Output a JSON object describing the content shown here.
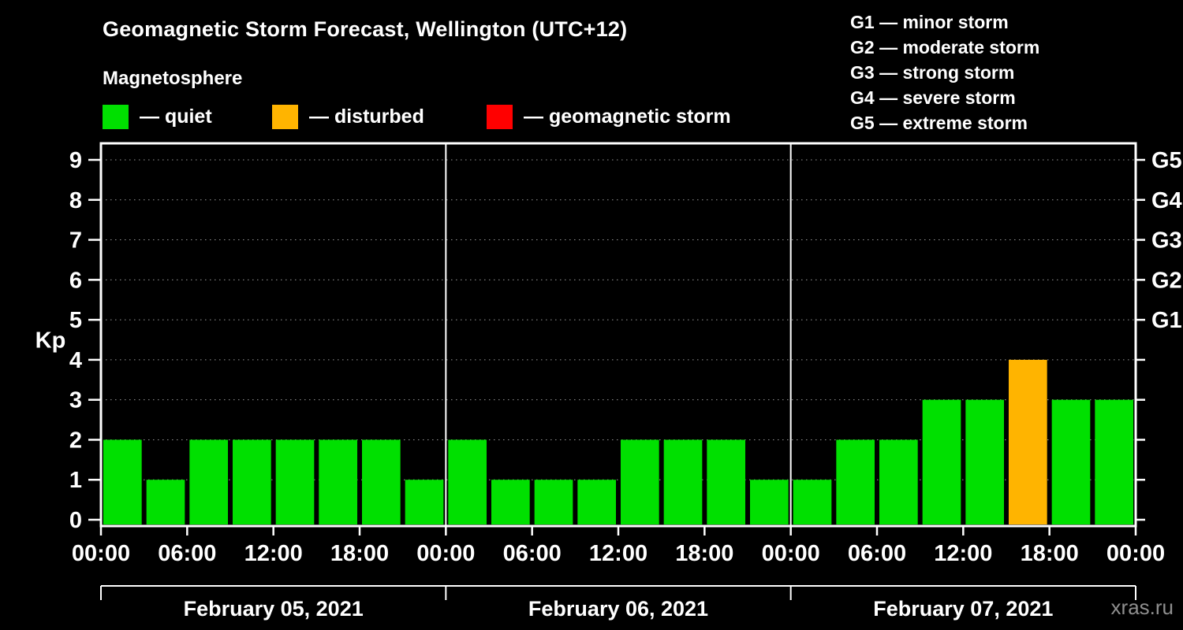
{
  "title": "Geomagnetic Storm Forecast, Wellington (UTC+12)",
  "subtitle": "Magnetosphere",
  "watermark": "xras.ru",
  "colors": {
    "quiet": "#00e000",
    "disturbed": "#ffb400",
    "storm": "#ff0000",
    "background": "#000000",
    "text": "#ffffff",
    "grid": "#999999"
  },
  "legend": {
    "items": [
      {
        "key": "quiet",
        "label": "— quiet"
      },
      {
        "key": "disturbed",
        "label": "— disturbed"
      },
      {
        "key": "storm",
        "label": "— geomagnetic storm"
      }
    ]
  },
  "storm_scale_legend": {
    "items": [
      "G1 — minor storm",
      "G2 — moderate storm",
      "G3 — strong storm",
      "G4 — severe storm",
      "G5 — extreme storm"
    ]
  },
  "chart_data": {
    "type": "bar",
    "title": "Geomagnetic Storm Forecast, Wellington (UTC+12)",
    "subtitle": "Magnetosphere",
    "ylabel": "Kp",
    "ylim": [
      0,
      9.4
    ],
    "y_ticks": [
      0,
      1,
      2,
      3,
      4,
      5,
      6,
      7,
      8,
      9
    ],
    "grid": "dotted horizontal at each Kp integer",
    "bar_interval_hours": 3,
    "x_tick_labels_per_day": [
      "00:00",
      "06:00",
      "12:00",
      "18:00"
    ],
    "x_final_tick_label": "00:00",
    "right_axis_labels": [
      {
        "kp": 5,
        "label": "G1"
      },
      {
        "kp": 6,
        "label": "G2"
      },
      {
        "kp": 7,
        "label": "G3"
      },
      {
        "kp": 8,
        "label": "G4"
      },
      {
        "kp": 9,
        "label": "G5"
      }
    ],
    "color_rule": {
      "quiet_max_kp": 3,
      "disturbed_kp": 4,
      "storm_min_kp": 5
    },
    "days": [
      {
        "date": "February 05, 2021",
        "values": [
          2,
          1,
          2,
          2,
          2,
          2,
          2,
          1
        ]
      },
      {
        "date": "February 06, 2021",
        "values": [
          2,
          1,
          1,
          1,
          2,
          2,
          2,
          1
        ]
      },
      {
        "date": "February 07, 2021",
        "values": [
          1,
          2,
          2,
          3,
          3,
          4,
          3,
          3
        ]
      }
    ]
  }
}
